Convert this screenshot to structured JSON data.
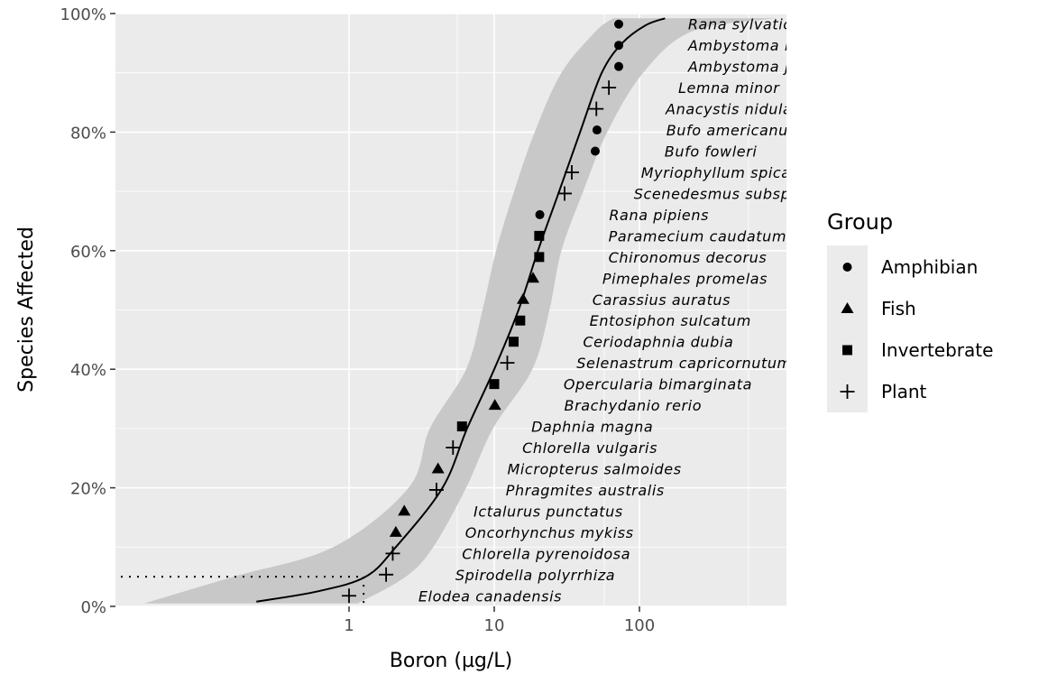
{
  "chart_data": {
    "type": "scatter",
    "xlabel": "Boron (µg/L)",
    "ylabel": "Species Affected",
    "x_scale": "log10",
    "xlim": [
      0.0246,
      1028
    ],
    "ylim": [
      0,
      100
    ],
    "x_ticks": [
      {
        "value": 1,
        "label": "1"
      },
      {
        "value": 10,
        "label": "10"
      },
      {
        "value": 100,
        "label": "100"
      }
    ],
    "x_minor_gridlines": [
      5.56,
      57.2,
      564
    ],
    "y_ticks": [
      {
        "value": 0,
        "label": "0%"
      },
      {
        "value": 20,
        "label": "20%"
      },
      {
        "value": 40,
        "label": "40%"
      },
      {
        "value": 60,
        "label": "60%"
      },
      {
        "value": 80,
        "label": "80%"
      },
      {
        "value": 100,
        "label": "100%"
      }
    ],
    "y_minor_gridlines": [
      10,
      30,
      50,
      70,
      90
    ],
    "grid": true,
    "label_shift_factor": 3,
    "hc5": {
      "conc": 1.26,
      "percent": 5
    },
    "legend": {
      "title": "Group",
      "placement": "right",
      "entries": [
        {
          "label": "Amphibian",
          "shape": "circle"
        },
        {
          "label": "Fish",
          "shape": "triangle"
        },
        {
          "label": "Invertebrate",
          "shape": "square"
        },
        {
          "label": "Plant",
          "shape": "plus"
        }
      ]
    },
    "points": [
      {
        "species": "Elodea canadensis",
        "group": "Plant",
        "conc": 1.0
      },
      {
        "species": "Spirodella polyrrhiza",
        "group": "Plant",
        "conc": 1.8
      },
      {
        "species": "Chlorella pyrenoidosa",
        "group": "Plant",
        "conc": 2.0
      },
      {
        "species": "Oncorhynchus mykiss",
        "group": "Fish",
        "conc": 2.1
      },
      {
        "species": "Ictalurus punctatus",
        "group": "Fish",
        "conc": 2.4
      },
      {
        "species": "Phragmites australis",
        "group": "Plant",
        "conc": 4.0
      },
      {
        "species": "Micropterus salmoides",
        "group": "Fish",
        "conc": 4.1
      },
      {
        "species": "Chlorella vulgaris",
        "group": "Plant",
        "conc": 5.2
      },
      {
        "species": "Daphnia magna",
        "group": "Invertebrate",
        "conc": 6.0
      },
      {
        "species": "Brachydanio rerio",
        "group": "Fish",
        "conc": 10.1
      },
      {
        "species": "Opercularia bimarginata",
        "group": "Invertebrate",
        "conc": 10.0
      },
      {
        "species": "Selenastrum capricornutum",
        "group": "Plant",
        "conc": 12.3
      },
      {
        "species": "Ceriodaphnia dubia",
        "group": "Invertebrate",
        "conc": 13.6
      },
      {
        "species": "Entosiphon sulcatum",
        "group": "Invertebrate",
        "conc": 15.1
      },
      {
        "species": "Carassius auratus",
        "group": "Fish",
        "conc": 15.8
      },
      {
        "species": "Pimephales promelas",
        "group": "Fish",
        "conc": 18.5
      },
      {
        "species": "Chironomus decorus",
        "group": "Invertebrate",
        "conc": 20.4
      },
      {
        "species": "Paramecium caudatum",
        "group": "Invertebrate",
        "conc": 20.4
      },
      {
        "species": "Rana pipiens",
        "group": "Amphibian",
        "conc": 20.6
      },
      {
        "species": "Scenedesmus subspicatus",
        "group": "Plant",
        "conc": 30.5
      },
      {
        "species": "Myriophyllum spicatum",
        "group": "Plant",
        "conc": 34.2
      },
      {
        "species": "Bufo fowleri",
        "group": "Amphibian",
        "conc": 49.6
      },
      {
        "species": "Bufo americanus",
        "group": "Amphibian",
        "conc": 51.0
      },
      {
        "species": "Anacystis nidulans",
        "group": "Plant",
        "conc": 50.5
      },
      {
        "species": "Lemna minor",
        "group": "Plant",
        "conc": 61.6
      },
      {
        "species": "Ambystoma jeffersonianum",
        "group": "Amphibian",
        "conc": 72
      },
      {
        "species": "Ambystoma maculatum",
        "group": "Amphibian",
        "conc": 72
      },
      {
        "species": "Rana sylvatica",
        "group": "Amphibian",
        "conc": 72
      }
    ],
    "fit_curve": [
      [
        0.23,
        0.8
      ],
      [
        0.6,
        2.5
      ],
      [
        1.3,
        5
      ],
      [
        2.1,
        10
      ],
      [
        4.4,
        20
      ],
      [
        6.5,
        30
      ],
      [
        10,
        40
      ],
      [
        14.7,
        50
      ],
      [
        20,
        60
      ],
      [
        28,
        70
      ],
      [
        39,
        80
      ],
      [
        55,
        90
      ],
      [
        76,
        95
      ],
      [
        110,
        98
      ],
      [
        150,
        99.2
      ]
    ],
    "confidence_band": {
      "percent": [
        0.5,
        5,
        10,
        20,
        30,
        40,
        50,
        60,
        70,
        80,
        90,
        97,
        99.2
      ],
      "lower": [
        0.039,
        0.16,
        0.78,
        2.57,
        3.6,
        6.4,
        8.3,
        10.3,
        13.7,
        19,
        29,
        50,
        66
      ],
      "upper": [
        1.15,
        2.46,
        3.8,
        6.4,
        9.8,
        18.3,
        24,
        29,
        41,
        60,
        106,
        230,
        870
      ]
    }
  }
}
